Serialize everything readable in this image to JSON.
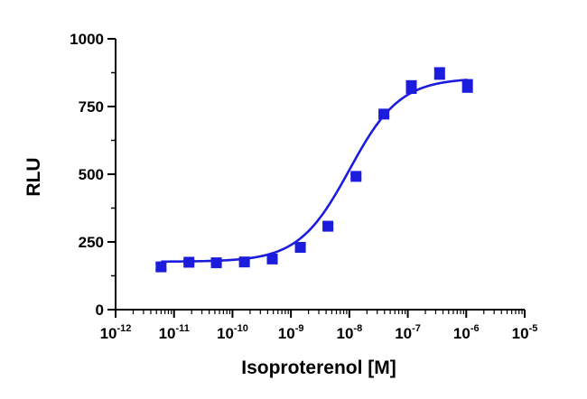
{
  "chart_data": {
    "type": "scatter",
    "title": "",
    "xlabel": "Isoproterenol [M]",
    "ylabel": "RLU",
    "x_scale": "log",
    "x_range": [
      1e-12,
      1e-05
    ],
    "ylim": [
      0,
      1000
    ],
    "y_ticks": [
      "0",
      "250",
      "500",
      "750",
      "1000"
    ],
    "x_tick_labels": [
      {
        "base": "10",
        "exp": "-12"
      },
      {
        "base": "10",
        "exp": "-11"
      },
      {
        "base": "10",
        "exp": "-10"
      },
      {
        "base": "10",
        "exp": "-9"
      },
      {
        "base": "10",
        "exp": "-8"
      },
      {
        "base": "10",
        "exp": "-7"
      },
      {
        "base": "10",
        "exp": "-6"
      },
      {
        "base": "10",
        "exp": "-5"
      }
    ],
    "grid": false,
    "legend": "none",
    "series": [
      {
        "color": "#1c1cdc",
        "marker": "square",
        "x": [
          6e-12,
          1.8e-11,
          5.3e-11,
          1.6e-10,
          4.8e-10,
          1.45e-09,
          4.3e-09,
          1.3e-08,
          3.9e-08,
          1.15e-07,
          3.5e-07,
          1.05e-06
        ],
        "y": [
          158,
          175,
          173,
          176,
          187,
          230,
          308,
          492,
          722,
          822,
          872,
          826
        ],
        "error": [
          12,
          6,
          6,
          6,
          6,
          10,
          10,
          8,
          8,
          22,
          20,
          22
        ]
      }
    ],
    "fit_curve": {
      "model": "sigmoidal dose-response",
      "bottom": 177,
      "top": 855,
      "log_ec50": -8.0,
      "hill_slope": 1.0,
      "color": "#1c1cdc"
    }
  }
}
